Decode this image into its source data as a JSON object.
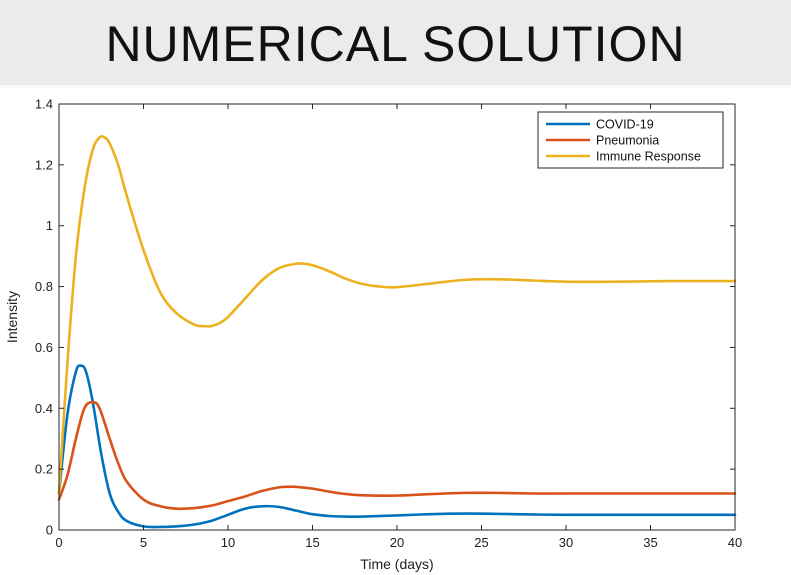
{
  "slide": {
    "title": "NUMERICAL SOLUTION"
  },
  "chart_data": {
    "type": "line",
    "title": "",
    "xlabel": "Time (days)",
    "ylabel": "Intensity",
    "xlim": [
      0,
      40
    ],
    "ylim": [
      0,
      1.4
    ],
    "xticks": [
      0,
      5,
      10,
      15,
      20,
      25,
      30,
      35,
      40
    ],
    "yticks": [
      0,
      0.2,
      0.4,
      0.6,
      0.8,
      1,
      1.2,
      1.4
    ],
    "grid": false,
    "legend_position": "top-right",
    "series": [
      {
        "name": "COVID-19",
        "color": "#0072bd",
        "x": [
          0,
          0.5,
          1.0,
          1.3,
          1.6,
          2.0,
          2.5,
          3.0,
          3.5,
          4.0,
          5.0,
          6.0,
          7.0,
          8.0,
          9.0,
          10.0,
          11.0,
          12.0,
          13.0,
          14.0,
          15.0,
          16.0,
          17.0,
          18.0,
          20.0,
          22.0,
          24.0,
          26.0,
          28.0,
          30.0,
          33.0,
          36.0,
          40.0
        ],
        "y": [
          0.12,
          0.38,
          0.52,
          0.54,
          0.52,
          0.42,
          0.25,
          0.12,
          0.06,
          0.03,
          0.012,
          0.01,
          0.012,
          0.018,
          0.03,
          0.05,
          0.07,
          0.078,
          0.076,
          0.064,
          0.052,
          0.046,
          0.044,
          0.044,
          0.048,
          0.052,
          0.054,
          0.053,
          0.051,
          0.05,
          0.05,
          0.05,
          0.05
        ]
      },
      {
        "name": "Pneumonia",
        "color": "#d95319",
        "x": [
          0,
          0.5,
          1.0,
          1.5,
          2.0,
          2.4,
          3.0,
          3.5,
          4.0,
          5.0,
          6.0,
          7.0,
          8.0,
          9.0,
          10.0,
          11.0,
          12.0,
          13.0,
          13.6,
          14.0,
          15.0,
          16.0,
          17.0,
          18.0,
          20.0,
          22.0,
          24.0,
          26.0,
          28.0,
          30.0,
          33.0,
          36.0,
          40.0
        ],
        "y": [
          0.1,
          0.18,
          0.3,
          0.4,
          0.42,
          0.4,
          0.3,
          0.22,
          0.16,
          0.1,
          0.078,
          0.07,
          0.072,
          0.08,
          0.095,
          0.11,
          0.128,
          0.14,
          0.142,
          0.142,
          0.136,
          0.126,
          0.118,
          0.114,
          0.113,
          0.118,
          0.122,
          0.122,
          0.12,
          0.12,
          0.12,
          0.12,
          0.12
        ]
      },
      {
        "name": "Immune Response",
        "color": "#edb120",
        "x": [
          0,
          0.5,
          1.0,
          1.5,
          2.0,
          2.4,
          2.7,
          3.0,
          3.5,
          4.0,
          5.0,
          6.0,
          7.0,
          8.0,
          8.5,
          9.0,
          9.5,
          10.0,
          11.0,
          12.0,
          13.0,
          14.0,
          14.5,
          15.0,
          16.0,
          17.0,
          18.0,
          19.0,
          20.0,
          22.0,
          24.0,
          26.0,
          28.0,
          30.0,
          33.0,
          36.0,
          40.0
        ],
        "y": [
          0.12,
          0.55,
          0.9,
          1.12,
          1.25,
          1.29,
          1.29,
          1.27,
          1.2,
          1.1,
          0.92,
          0.78,
          0.71,
          0.675,
          0.67,
          0.67,
          0.68,
          0.7,
          0.76,
          0.82,
          0.86,
          0.875,
          0.875,
          0.87,
          0.85,
          0.825,
          0.808,
          0.8,
          0.798,
          0.81,
          0.822,
          0.824,
          0.82,
          0.816,
          0.816,
          0.818,
          0.818
        ]
      }
    ]
  }
}
